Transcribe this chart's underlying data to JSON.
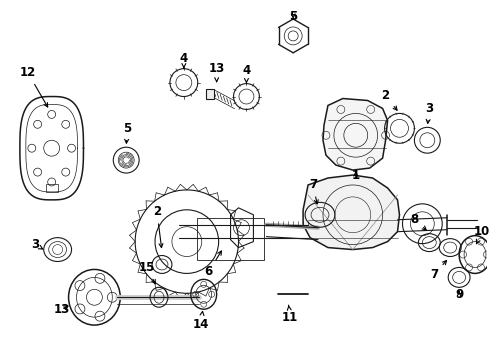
{
  "background_color": "#ffffff",
  "figsize": [
    4.9,
    3.6
  ],
  "dpi": 100,
  "lc": "#1a1a1a",
  "lw": 0.8
}
